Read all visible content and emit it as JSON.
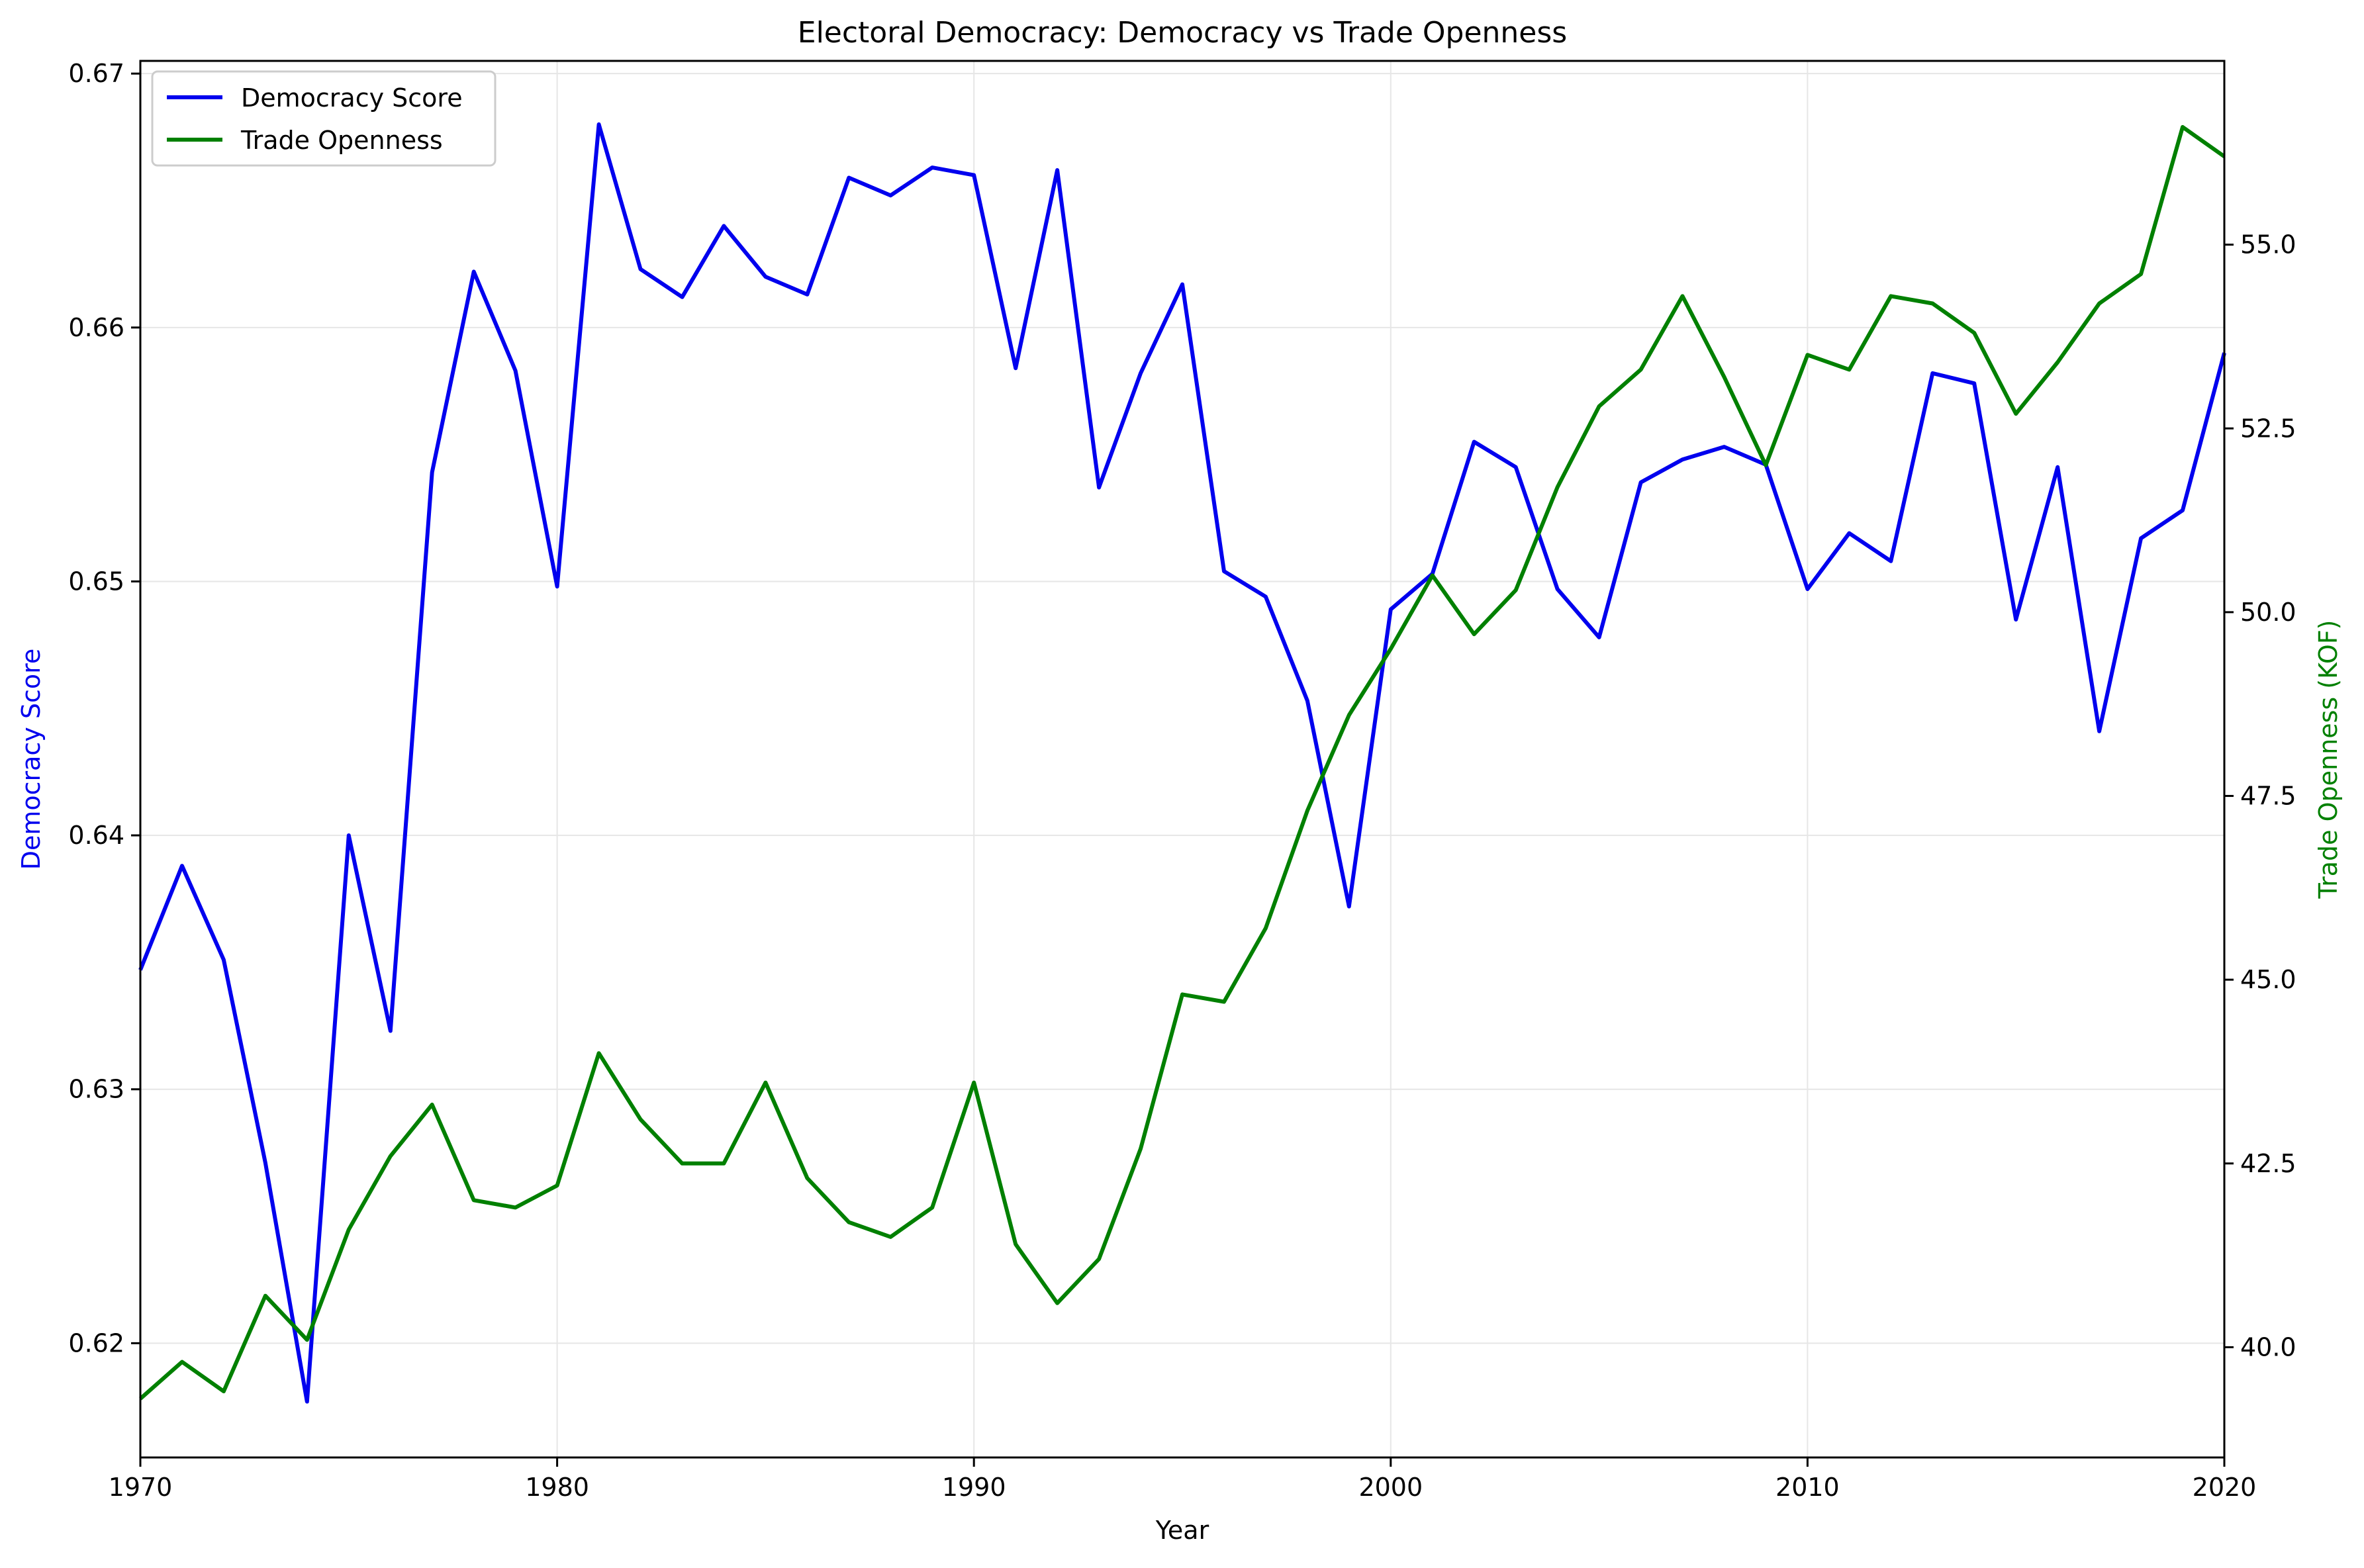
{
  "chart_data": {
    "type": "line",
    "title": "Electoral Democracy: Democracy vs Trade Openness",
    "xlabel": "Year",
    "ylabel_left": "Democracy Score",
    "ylabel_right": "Trade Openness (KOF)",
    "xlim": [
      1970,
      2020
    ],
    "ylim_left": [
      0.6155,
      0.6705
    ],
    "ylim_right": [
      38.5,
      57.5
    ],
    "x_ticks": [
      "1970",
      "1980",
      "1990",
      "2000",
      "2010",
      "2020"
    ],
    "y_left_ticks": [
      "0.62",
      "0.63",
      "0.64",
      "0.65",
      "0.66",
      "0.67"
    ],
    "y_right_ticks": [
      "40.0",
      "42.5",
      "45.0",
      "47.5",
      "50.0",
      "52.5",
      "55.0"
    ],
    "grid": true,
    "legend_position": "top-left",
    "colors": {
      "democracy": "#0000ee",
      "trade": "#008000",
      "axis": "#000000",
      "grid": "#e6e6e6"
    },
    "x": [
      1970,
      1971,
      1972,
      1973,
      1974,
      1975,
      1976,
      1977,
      1978,
      1979,
      1980,
      1981,
      1982,
      1983,
      1984,
      1985,
      1986,
      1987,
      1988,
      1989,
      1990,
      1991,
      1992,
      1993,
      1994,
      1995,
      1996,
      1997,
      1998,
      1999,
      2000,
      2001,
      2002,
      2003,
      2004,
      2005,
      2006,
      2007,
      2008,
      2009,
      2010,
      2011,
      2012,
      2013,
      2014,
      2015,
      2016,
      2017,
      2018,
      2019,
      2020
    ],
    "series": [
      {
        "name": "Democracy Score",
        "axis": "left",
        "values": [
          0.6347,
          0.6388,
          0.6351,
          0.6271,
          0.6177,
          0.64,
          0.6323,
          0.6543,
          0.6622,
          0.6583,
          0.6498,
          0.668,
          0.6623,
          0.6612,
          0.664,
          0.662,
          0.6613,
          0.6659,
          0.6652,
          0.6663,
          0.666,
          0.6584,
          0.6662,
          0.6537,
          0.6582,
          0.6617,
          0.6504,
          0.6494,
          0.6453,
          0.6372,
          0.6489,
          0.6503,
          0.6555,
          0.6545,
          0.6497,
          0.6478,
          0.6539,
          0.6548,
          0.6553,
          0.6546,
          0.6497,
          0.6519,
          0.6508,
          0.6582,
          0.6578,
          0.6485,
          0.6545,
          0.6441,
          0.6517,
          0.6528,
          0.659
        ]
      },
      {
        "name": "Trade Openness",
        "axis": "right",
        "values": [
          39.3,
          39.8,
          39.4,
          40.7,
          40.1,
          41.6,
          42.6,
          43.3,
          42.0,
          41.9,
          42.2,
          44.0,
          43.1,
          42.5,
          42.5,
          43.6,
          42.3,
          41.7,
          41.5,
          41.9,
          43.6,
          41.4,
          40.6,
          41.2,
          42.7,
          44.8,
          44.7,
          45.7,
          47.3,
          48.6,
          49.5,
          50.5,
          49.7,
          50.3,
          51.7,
          52.8,
          53.3,
          54.3,
          53.2,
          52.0,
          53.5,
          53.3,
          54.3,
          54.2,
          53.8,
          52.7,
          53.4,
          54.2,
          54.6,
          56.6,
          56.2
        ]
      }
    ]
  }
}
